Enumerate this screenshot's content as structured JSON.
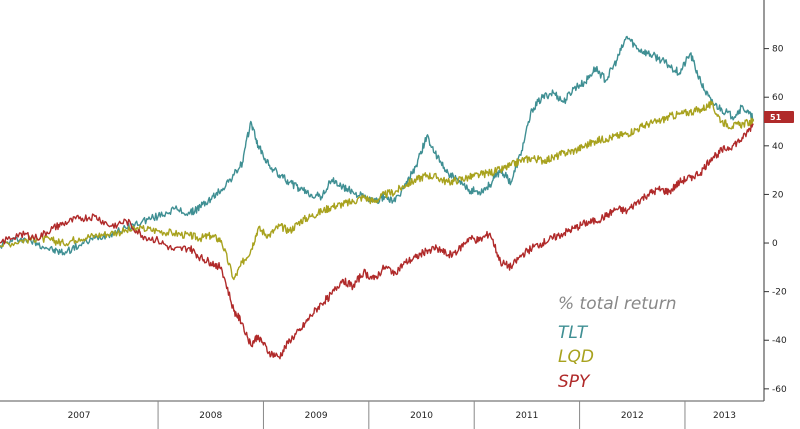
{
  "chart_data": {
    "type": "line",
    "title": "",
    "xlabel": "",
    "ylabel": "",
    "y_axis_side": "right",
    "ylim": [
      -65,
      100
    ],
    "yticks": [
      -60,
      -40,
      -20,
      0,
      20,
      40,
      60,
      80
    ],
    "x_years": [
      "2007",
      "2008",
      "2009",
      "2010",
      "2011",
      "2012",
      "2013"
    ],
    "x_range": [
      2006.5,
      2013.75
    ],
    "grid": false,
    "legend": {
      "placement": "bottom-right",
      "title": "% total return",
      "entries": [
        "TLT",
        "LQD",
        "SPY"
      ]
    },
    "last_value_label": "51",
    "series": [
      {
        "name": "TLT",
        "color": "#3f8f93",
        "x": [
          2006.5,
          2006.7,
          2006.85,
          2007.0,
          2007.1,
          2007.25,
          2007.4,
          2007.55,
          2007.7,
          2007.85,
          2008.0,
          2008.15,
          2008.3,
          2008.4,
          2008.5,
          2008.6,
          2008.72,
          2008.8,
          2008.88,
          2008.95,
          2009.05,
          2009.15,
          2009.25,
          2009.35,
          2009.45,
          2009.55,
          2009.65,
          2009.75,
          2009.85,
          2009.95,
          2010.05,
          2010.15,
          2010.25,
          2010.35,
          2010.45,
          2010.55,
          2010.65,
          2010.75,
          2010.85,
          2010.95,
          2011.05,
          2011.15,
          2011.25,
          2011.35,
          2011.45,
          2011.55,
          2011.65,
          2011.75,
          2011.85,
          2011.95,
          2012.05,
          2012.15,
          2012.25,
          2012.35,
          2012.45,
          2012.55,
          2012.65,
          2012.75,
          2012.85,
          2012.95,
          2013.05,
          2013.15,
          2013.25,
          2013.35,
          2013.45,
          2013.55,
          2013.65
        ],
        "values": [
          -1,
          2,
          0,
          -3,
          -4,
          -1,
          2,
          4,
          6,
          9,
          11,
          14,
          12,
          15,
          18,
          22,
          28,
          33,
          50,
          40,
          32,
          28,
          25,
          22,
          20,
          19,
          26,
          23,
          21,
          19,
          17,
          19,
          17,
          24,
          32,
          44,
          35,
          29,
          25,
          22,
          21,
          24,
          30,
          25,
          38,
          55,
          60,
          62,
          58,
          64,
          66,
          72,
          67,
          75,
          85,
          80,
          78,
          76,
          73,
          70,
          78,
          66,
          58,
          55,
          52,
          56,
          51
        ]
      },
      {
        "name": "LQD",
        "color": "#a8a21e",
        "x": [
          2006.5,
          2006.7,
          2006.85,
          2007.0,
          2007.1,
          2007.25,
          2007.4,
          2007.55,
          2007.7,
          2007.85,
          2008.0,
          2008.15,
          2008.3,
          2008.4,
          2008.5,
          2008.6,
          2008.72,
          2008.8,
          2008.88,
          2008.95,
          2009.05,
          2009.15,
          2009.25,
          2009.35,
          2009.45,
          2009.55,
          2009.65,
          2009.75,
          2009.85,
          2009.95,
          2010.05,
          2010.15,
          2010.25,
          2010.35,
          2010.45,
          2010.55,
          2010.65,
          2010.75,
          2010.85,
          2010.95,
          2011.05,
          2011.15,
          2011.25,
          2011.35,
          2011.45,
          2011.55,
          2011.65,
          2011.75,
          2011.85,
          2011.95,
          2012.05,
          2012.15,
          2012.25,
          2012.35,
          2012.45,
          2012.55,
          2012.65,
          2012.75,
          2012.85,
          2012.95,
          2013.05,
          2013.15,
          2013.25,
          2013.35,
          2013.45,
          2013.55,
          2013.65
        ],
        "values": [
          -1,
          1,
          2,
          1,
          0,
          2,
          3,
          4,
          5,
          6,
          5,
          4,
          3,
          2,
          3,
          1,
          -15,
          -8,
          -3,
          6,
          3,
          7,
          5,
          9,
          11,
          13,
          15,
          16,
          17,
          19,
          17,
          20,
          21,
          24,
          26,
          28,
          27,
          25,
          26,
          27,
          28,
          29,
          30,
          32,
          34,
          35,
          34,
          35,
          37,
          38,
          40,
          42,
          43,
          44,
          45,
          47,
          49,
          50,
          52,
          53,
          54,
          55,
          57,
          50,
          48,
          49,
          50
        ]
      },
      {
        "name": "SPY",
        "color": "#b02a2a",
        "x": [
          2006.5,
          2006.7,
          2006.85,
          2007.0,
          2007.1,
          2007.25,
          2007.4,
          2007.55,
          2007.7,
          2007.85,
          2008.0,
          2008.15,
          2008.3,
          2008.4,
          2008.5,
          2008.6,
          2008.72,
          2008.8,
          2008.88,
          2008.95,
          2009.05,
          2009.15,
          2009.25,
          2009.35,
          2009.45,
          2009.55,
          2009.65,
          2009.75,
          2009.85,
          2009.95,
          2010.05,
          2010.15,
          2010.25,
          2010.35,
          2010.45,
          2010.55,
          2010.65,
          2010.75,
          2010.85,
          2010.95,
          2011.05,
          2011.15,
          2011.25,
          2011.35,
          2011.45,
          2011.55,
          2011.65,
          2011.75,
          2011.85,
          2011.95,
          2012.05,
          2012.15,
          2012.25,
          2012.35,
          2012.45,
          2012.55,
          2012.65,
          2012.75,
          2012.85,
          2012.95,
          2013.05,
          2013.15,
          2013.25,
          2013.35,
          2013.45,
          2013.55,
          2013.65
        ],
        "values": [
          0,
          4,
          2,
          6,
          8,
          10,
          11,
          7,
          9,
          3,
          1,
          -3,
          -2,
          -6,
          -8,
          -10,
          -28,
          -33,
          -42,
          -38,
          -45,
          -47,
          -40,
          -36,
          -30,
          -25,
          -21,
          -15,
          -18,
          -12,
          -15,
          -10,
          -12,
          -8,
          -6,
          -3,
          -2,
          -5,
          -3,
          2,
          1,
          4,
          -8,
          -10,
          -5,
          -2,
          0,
          2,
          4,
          6,
          8,
          9,
          11,
          14,
          13,
          17,
          20,
          22,
          21,
          25,
          27,
          29,
          35,
          38,
          40,
          43,
          49
        ]
      }
    ]
  }
}
